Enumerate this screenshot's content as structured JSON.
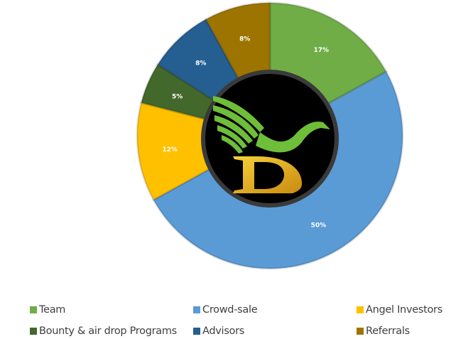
{
  "chart_data": {
    "type": "pie",
    "variant": "donut",
    "title": "",
    "categories": [
      "Team",
      "Crowd-sale",
      "Angel Investors",
      "Bounty & air drop Programs",
      "Advisors",
      "Referrals"
    ],
    "values": [
      17,
      50,
      12,
      5,
      8,
      8
    ],
    "labels": [
      "17%",
      "50%",
      "12%",
      "5%",
      "8%",
      "8%"
    ],
    "colors": [
      "#70ad47",
      "#5b9bd5",
      "#ffc000",
      "#43682b",
      "#255e91",
      "#9e7400"
    ],
    "start_angle": "top, clockwise",
    "legend_placement": "bottom",
    "center_logo": "D logo with green eagle wing"
  }
}
